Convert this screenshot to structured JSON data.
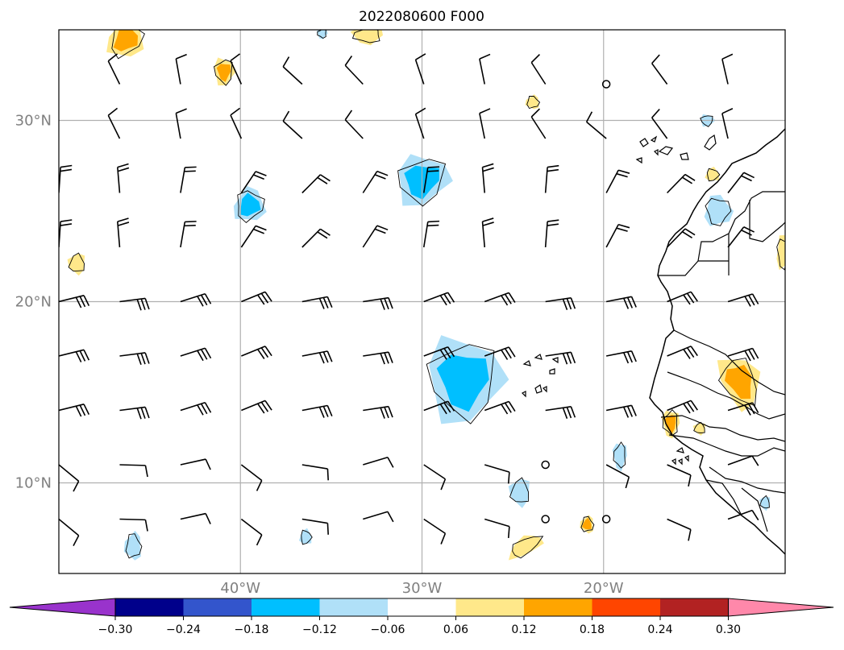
{
  "title": "2022080600 F000",
  "map": {
    "lat_range": [
      5,
      35
    ],
    "lon_range": [
      -50,
      -10
    ],
    "gridlines": true,
    "lat_ticks": [
      {
        "value": 30,
        "label": "30°N"
      },
      {
        "value": 20,
        "label": "20°N"
      },
      {
        "value": 10,
        "label": "10°N"
      }
    ],
    "lon_ticks": [
      {
        "value": -40,
        "label": "40°W"
      },
      {
        "value": -30,
        "label": "30°W"
      },
      {
        "value": -20,
        "label": "20°W"
      }
    ],
    "colors": {
      "gridline": "#b0b0b0",
      "tick_label": "#808080",
      "coast": "#000000"
    }
  },
  "colorbar": {
    "labels": [
      "−0.30",
      "−0.24",
      "−0.18",
      "−0.12",
      "−0.06",
      "0.06",
      "0.12",
      "0.18",
      "0.24",
      "0.30"
    ],
    "under_color": "#9933cc",
    "over_color": "#ff88aa",
    "colors": [
      "#00008b",
      "#3355cc",
      "#00bfff",
      "#b0e0f8",
      "#ffffff",
      "#ffe88a",
      "#ffa500",
      "#ff4500",
      "#b22222"
    ]
  },
  "contours": {
    "negative": [
      {
        "lon": -30,
        "lat": 26.7,
        "rlon": 1.6,
        "rlat": 1.4,
        "rot": -35,
        "level": -0.18
      },
      {
        "lon": -39.5,
        "lat": 25.3,
        "rlon": 0.9,
        "rlat": 1.0,
        "rot": 20,
        "level": -0.18
      },
      {
        "lon": -27.7,
        "lat": 15.7,
        "rlon": 2.2,
        "rlat": 2.5,
        "rot": 0,
        "level": -0.18
      },
      {
        "lon": -19.1,
        "lat": 11.5,
        "rlon": 0.4,
        "rlat": 0.8,
        "rot": 0,
        "level": -0.12
      },
      {
        "lon": -24.6,
        "lat": 9.5,
        "rlon": 0.6,
        "rlat": 0.8,
        "rot": 0,
        "level": -0.12
      },
      {
        "lon": -45.9,
        "lat": 6.5,
        "rlon": 0.5,
        "rlat": 0.8,
        "rot": 0,
        "level": -0.12
      },
      {
        "lon": -36.4,
        "lat": 7.0,
        "rlon": 0.35,
        "rlat": 0.45,
        "rot": 0,
        "level": -0.12
      },
      {
        "lon": -13.7,
        "lat": 25.0,
        "rlon": 0.8,
        "rlat": 0.9,
        "rot": 0,
        "level": -0.12
      },
      {
        "lon": -14.3,
        "lat": 30.0,
        "rlon": 0.4,
        "rlat": 0.35,
        "rot": 0,
        "level": -0.12
      },
      {
        "lon": -35.5,
        "lat": 34.8,
        "rlon": 0.3,
        "rlat": 0.3,
        "rot": 0,
        "level": -0.12
      },
      {
        "lon": -11.1,
        "lat": 8.9,
        "rlon": 0.3,
        "rlat": 0.4,
        "rot": 0,
        "level": -0.12
      }
    ],
    "positive": [
      {
        "lon": -46.3,
        "lat": 34.5,
        "rlon": 1.0,
        "rlat": 1.2,
        "rot": 30,
        "level": 0.18
      },
      {
        "lon": -40.9,
        "lat": 32.7,
        "rlon": 0.6,
        "rlat": 0.8,
        "rot": 0,
        "level": 0.18
      },
      {
        "lon": -33.0,
        "lat": 34.7,
        "rlon": 0.9,
        "rlat": 0.5,
        "rot": 0,
        "level": 0.12
      },
      {
        "lon": -49.0,
        "lat": 22.1,
        "rlon": 0.5,
        "rlat": 0.6,
        "rot": 0,
        "level": 0.12
      },
      {
        "lon": -23.9,
        "lat": 31.0,
        "rlon": 0.4,
        "rlat": 0.4,
        "rot": 0,
        "level": 0.12
      },
      {
        "lon": -14.0,
        "lat": 27.0,
        "rlon": 0.4,
        "rlat": 0.4,
        "rot": 0,
        "level": 0.12
      },
      {
        "lon": -10.1,
        "lat": 22.7,
        "rlon": 0.4,
        "rlat": 1.0,
        "rot": 0,
        "level": 0.12
      },
      {
        "lon": -12.5,
        "lat": 15.6,
        "rlon": 1.1,
        "rlat": 1.6,
        "rot": -25,
        "level": 0.18
      },
      {
        "lon": -16.3,
        "lat": 13.3,
        "rlon": 0.5,
        "rlat": 0.8,
        "rot": 0,
        "level": 0.18
      },
      {
        "lon": -14.7,
        "lat": 13.0,
        "rlon": 0.35,
        "rlat": 0.35,
        "rot": 0,
        "level": 0.12
      },
      {
        "lon": -20.9,
        "lat": 7.7,
        "rlon": 0.4,
        "rlat": 0.5,
        "rot": 0,
        "level": 0.18
      },
      {
        "lon": -24.3,
        "lat": 6.5,
        "rlon": 1.1,
        "rlat": 0.5,
        "rot": -30,
        "level": 0.12
      }
    ]
  }
}
